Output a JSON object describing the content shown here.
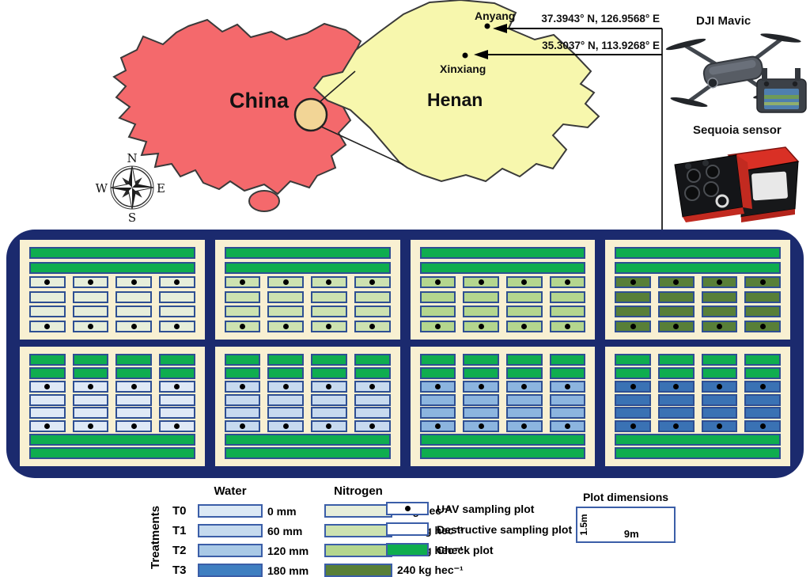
{
  "map": {
    "country_label": "China",
    "province_label": "Henan",
    "cities": [
      {
        "name": "Anyang",
        "coords": "37.3943° N, 126.9568° E"
      },
      {
        "name": "Xinxiang",
        "coords": "35.3037° N, 113.9268° E"
      }
    ],
    "compass": {
      "n": "N",
      "e": "E",
      "s": "S",
      "w": "W"
    },
    "colors": {
      "china": "#f4696c",
      "henan": "#f7f7ad",
      "highlight": "#f2d596",
      "outline": "#3a3a3a"
    }
  },
  "devices": {
    "drone_label": "DJI Mavic",
    "sensor_label": "Sequoia sensor"
  },
  "field": {
    "container_color": "#1b2a6e",
    "block_bg": "#f8f0d2",
    "check_color": "#0fad4f",
    "cell_border": "#2e4f93",
    "cols_per_row": 4,
    "top_rows": [
      "check-full",
      "check-full",
      "dots",
      "plain",
      "plain",
      "dots"
    ],
    "bottom_rows": [
      "check-seg",
      "check-seg",
      "dots",
      "plain",
      "plain",
      "dots",
      "check-full",
      "check-full"
    ],
    "blocks": [
      {
        "id": "nitrogen-0",
        "row": "top",
        "plot_color": "#e7eeda"
      },
      {
        "id": "nitrogen-120",
        "row": "top",
        "plot_color": "#cde2b0"
      },
      {
        "id": "nitrogen-180",
        "row": "top",
        "plot_color": "#b4d68e"
      },
      {
        "id": "nitrogen-240",
        "row": "top",
        "plot_color": "#587f38"
      },
      {
        "id": "water-0",
        "row": "bottom",
        "plot_color": "#dfe9f6"
      },
      {
        "id": "water-60",
        "row": "bottom",
        "plot_color": "#c7daef"
      },
      {
        "id": "water-120",
        "row": "bottom",
        "plot_color": "#8cb5df"
      },
      {
        "id": "water-180",
        "row": "bottom",
        "plot_color": "#3a72b4"
      }
    ]
  },
  "legend": {
    "treatments_label": "Treatments",
    "water_header": "Water",
    "nitrogen_header": "Nitrogen",
    "rows": [
      {
        "t": "T0",
        "water": "0 mm",
        "water_color": "#dce9f5",
        "nitrogen": "0 kg hec⁻¹",
        "nitrogen_color": "#e7eeda"
      },
      {
        "t": "T1",
        "water": "60 mm",
        "water_color": "#c5daee",
        "nitrogen": "120 kg hec⁻¹",
        "nitrogen_color": "#cde2b0"
      },
      {
        "t": "T2",
        "water": "120 mm",
        "water_color": "#a9c9e6",
        "nitrogen": "180 kg hec⁻¹",
        "nitrogen_color": "#b4d68e"
      },
      {
        "t": "T3",
        "water": "180 mm",
        "water_color": "#3f7fc1",
        "nitrogen": "240 kg hec⁻¹",
        "nitrogen_color": "#587f38"
      }
    ],
    "markers": [
      {
        "label": "UAV sampling plot",
        "fill": "#ffffff",
        "dot": true
      },
      {
        "label": "Destructive sampling plot",
        "fill": "#ffffff",
        "dot": false
      },
      {
        "label": "Check plot",
        "fill": "#0fad4f",
        "dot": false
      }
    ],
    "plot_dimensions": {
      "title": "Plot dimensions",
      "height": "1.5m",
      "width": "9m"
    }
  }
}
